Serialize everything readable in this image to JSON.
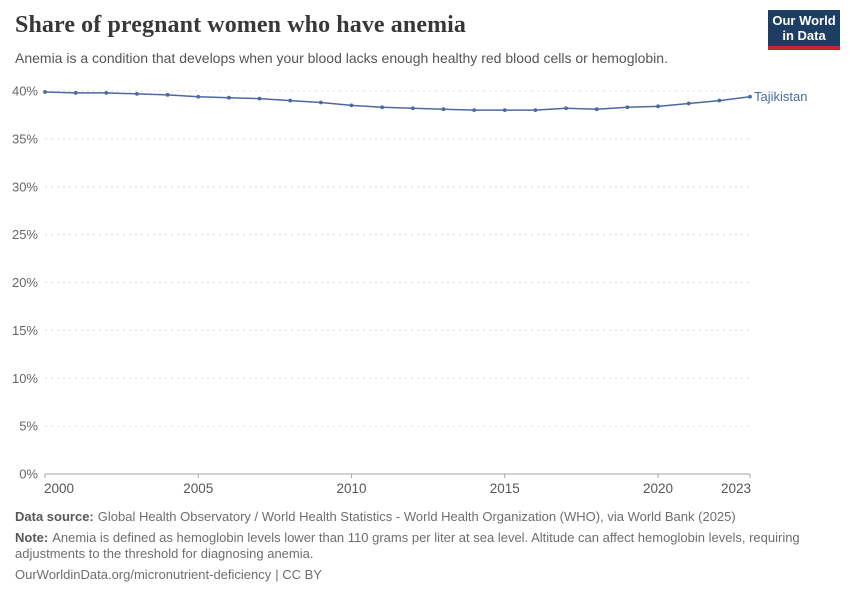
{
  "header": {
    "title": "Share of pregnant women who have anemia",
    "subtitle": "Anemia is a condition that develops when your blood lacks enough healthy red blood cells or hemoglobin.",
    "logo": {
      "line1": "Our World",
      "line2": "in Data",
      "bg_color": "#1d3d63",
      "stripe_color": "#c5262c"
    }
  },
  "chart_data": {
    "type": "line",
    "title": "Share of pregnant women who have anemia",
    "xlabel": "",
    "ylabel": "",
    "xlim": [
      2000,
      2023
    ],
    "ylim": [
      0,
      40
    ],
    "grid": "horizontal-dashed",
    "legend": "inline-end-label",
    "x_ticks": [
      {
        "value": 2000,
        "label": "2000"
      },
      {
        "value": 2005,
        "label": "2005"
      },
      {
        "value": 2010,
        "label": "2010"
      },
      {
        "value": 2015,
        "label": "2015"
      },
      {
        "value": 2020,
        "label": "2020"
      },
      {
        "value": 2023,
        "label": "2023"
      }
    ],
    "y_ticks": [
      {
        "value": 0,
        "label": "0%"
      },
      {
        "value": 5,
        "label": "5%"
      },
      {
        "value": 10,
        "label": "10%"
      },
      {
        "value": 15,
        "label": "15%"
      },
      {
        "value": 20,
        "label": "20%"
      },
      {
        "value": 25,
        "label": "25%"
      },
      {
        "value": 30,
        "label": "30%"
      },
      {
        "value": 35,
        "label": "35%"
      },
      {
        "value": 40,
        "label": "40%"
      }
    ],
    "series": [
      {
        "name": "Tajikistan",
        "color": "#4c6a9d",
        "years": [
          2000,
          2001,
          2002,
          2003,
          2004,
          2005,
          2006,
          2007,
          2008,
          2009,
          2010,
          2011,
          2012,
          2013,
          2014,
          2015,
          2016,
          2017,
          2018,
          2019,
          2020,
          2021,
          2022,
          2023
        ],
        "values": [
          39.9,
          39.8,
          39.8,
          39.7,
          39.6,
          39.4,
          39.3,
          39.2,
          39.0,
          38.8,
          38.5,
          38.3,
          38.2,
          38.1,
          38.0,
          38.0,
          38.0,
          38.2,
          38.1,
          38.3,
          38.4,
          38.7,
          39.0,
          39.4
        ]
      }
    ]
  },
  "footer": {
    "data_source_label": "Data source:",
    "data_source_text": "Global Health Observatory / World Health Statistics - World Health Organization (WHO), via World Bank (2025)",
    "note_label": "Note:",
    "note_text": "Anemia is defined as hemoglobin levels lower than 110 grams per liter at sea level. Altitude can affect hemoglobin levels, requiring adjustments to the threshold for diagnosing anemia.",
    "url": "OurWorldinData.org/micronutrient-deficiency",
    "license_suffix": "| CC BY"
  }
}
